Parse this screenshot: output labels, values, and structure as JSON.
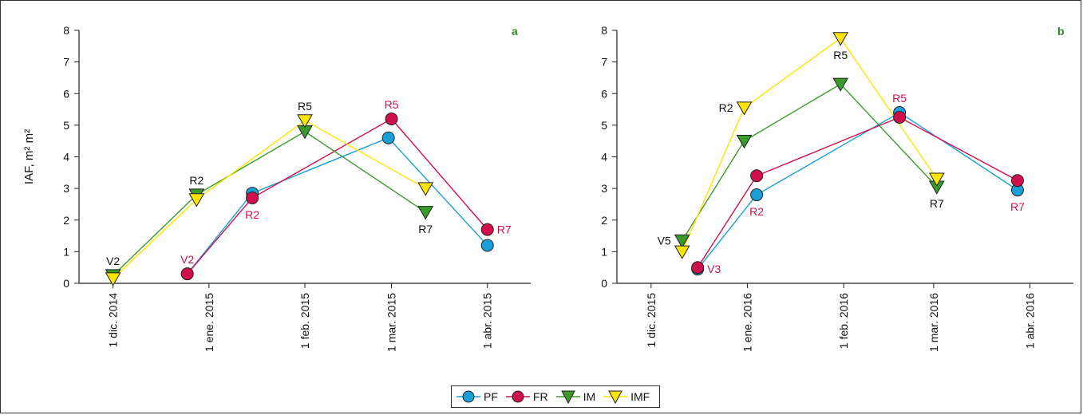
{
  "colors": {
    "PF": "#1a9fd6",
    "FR": "#d0104c",
    "IM": "#3a9a2a",
    "IMF": "#ffe400",
    "annot_black": "#111111",
    "annot_red": "#d0104c",
    "panel_letter": "#2e8b2e"
  },
  "legend": [
    {
      "key": "PF",
      "label": "PF",
      "marker": "circle"
    },
    {
      "key": "FR",
      "label": "FR",
      "marker": "circle"
    },
    {
      "key": "IM",
      "label": "IM",
      "marker": "triangle-down"
    },
    {
      "key": "IMF",
      "label": "IMF",
      "marker": "triangle-down"
    }
  ],
  "chart_data": [
    {
      "type": "line",
      "panel": "a",
      "ylabel": "IAF, m² m²",
      "ylim": [
        0,
        8
      ],
      "yticks": [
        0,
        1,
        2,
        3,
        4,
        5,
        6,
        7,
        8
      ],
      "xlim": [
        "2014-11-20",
        "2015-04-15"
      ],
      "xticks": [
        {
          "date": "2014-12-01",
          "label": "1 dic. 2014"
        },
        {
          "date": "2015-01-01",
          "label": "1 ene. 2015"
        },
        {
          "date": "2015-02-01",
          "label": "1 feb. 2015"
        },
        {
          "date": "2015-03-01",
          "label": "1 mar. 2015"
        },
        {
          "date": "2015-04-01",
          "label": "1 abr. 2015"
        }
      ],
      "series": [
        {
          "name": "PF",
          "points": [
            [
              "2014-12-25",
              0.3
            ],
            [
              "2015-01-15",
              2.85
            ],
            [
              "2015-02-28",
              4.6
            ],
            [
              "2015-04-01",
              1.2
            ]
          ]
        },
        {
          "name": "FR",
          "points": [
            [
              "2014-12-25",
              0.3
            ],
            [
              "2015-01-15",
              2.7
            ],
            [
              "2015-03-01",
              5.2
            ],
            [
              "2015-04-01",
              1.7
            ]
          ]
        },
        {
          "name": "IM",
          "points": [
            [
              "2014-12-01",
              0.25
            ],
            [
              "2014-12-28",
              2.8
            ],
            [
              "2015-02-01",
              4.8
            ],
            [
              "2015-03-12",
              2.25
            ]
          ]
        },
        {
          "name": "IMF",
          "points": [
            [
              "2014-12-01",
              0.15
            ],
            [
              "2014-12-28",
              2.65
            ],
            [
              "2015-02-01",
              5.15
            ],
            [
              "2015-03-12",
              3.0
            ]
          ]
        }
      ],
      "annotations": [
        {
          "text": "V2",
          "at": [
            "2014-12-01",
            0.25
          ],
          "color": "black",
          "pos": "above"
        },
        {
          "text": "V2",
          "at": [
            "2014-12-25",
            0.3
          ],
          "color": "red",
          "pos": "above"
        },
        {
          "text": "R2",
          "at": [
            "2014-12-28",
            2.8
          ],
          "color": "black",
          "pos": "above"
        },
        {
          "text": "R2",
          "at": [
            "2015-01-15",
            2.7
          ],
          "color": "red",
          "pos": "below"
        },
        {
          "text": "R5",
          "at": [
            "2015-02-01",
            5.15
          ],
          "color": "black",
          "pos": "above"
        },
        {
          "text": "R5",
          "at": [
            "2015-03-01",
            5.2
          ],
          "color": "red",
          "pos": "above"
        },
        {
          "text": "R7",
          "at": [
            "2015-03-12",
            2.25
          ],
          "color": "black",
          "pos": "below"
        },
        {
          "text": "R7",
          "at": [
            "2015-04-01",
            1.7
          ],
          "color": "red",
          "pos": "right"
        }
      ]
    },
    {
      "type": "line",
      "panel": "b",
      "ylabel": "",
      "ylim": [
        0,
        8
      ],
      "yticks": [
        0,
        1,
        2,
        3,
        4,
        5,
        6,
        7,
        8
      ],
      "xlim": [
        "2015-11-20",
        "2016-04-15"
      ],
      "xticks": [
        {
          "date": "2015-12-01",
          "label": "1 dic. 2015"
        },
        {
          "date": "2016-01-01",
          "label": "1 ene. 2016"
        },
        {
          "date": "2016-02-01",
          "label": "1 feb. 2016"
        },
        {
          "date": "2016-03-01",
          "label": "1 mar. 2016"
        },
        {
          "date": "2016-04-01",
          "label": "1 abr. 2016"
        }
      ],
      "series": [
        {
          "name": "PF",
          "points": [
            [
              "2015-12-16",
              0.45
            ],
            [
              "2016-01-04",
              2.8
            ],
            [
              "2016-02-19",
              5.4
            ],
            [
              "2016-03-28",
              2.95
            ]
          ]
        },
        {
          "name": "FR",
          "points": [
            [
              "2015-12-16",
              0.5
            ],
            [
              "2016-01-04",
              3.4
            ],
            [
              "2016-02-19",
              5.25
            ],
            [
              "2016-03-28",
              3.25
            ]
          ]
        },
        {
          "name": "IM",
          "points": [
            [
              "2015-12-11",
              1.35
            ],
            [
              "2015-12-31",
              4.5
            ],
            [
              "2016-01-31",
              6.3
            ],
            [
              "2016-03-02",
              3.05
            ]
          ]
        },
        {
          "name": "IMF",
          "points": [
            [
              "2015-12-11",
              1.0
            ],
            [
              "2015-12-31",
              5.55
            ],
            [
              "2016-01-31",
              7.75
            ],
            [
              "2016-03-02",
              3.3
            ]
          ]
        }
      ],
      "annotations": [
        {
          "text": "V5",
          "at": [
            "2015-12-11",
            1.35
          ],
          "color": "black",
          "pos": "left"
        },
        {
          "text": "V3",
          "at": [
            "2015-12-16",
            0.45
          ],
          "color": "red",
          "pos": "right"
        },
        {
          "text": "R2",
          "at": [
            "2015-12-31",
            5.55
          ],
          "color": "black",
          "pos": "left"
        },
        {
          "text": "R2",
          "at": [
            "2016-01-04",
            2.8
          ],
          "color": "red",
          "pos": "below"
        },
        {
          "text": "R5",
          "at": [
            "2016-01-31",
            7.75
          ],
          "color": "black",
          "pos": "below"
        },
        {
          "text": "R5",
          "at": [
            "2016-02-19",
            5.4
          ],
          "color": "red",
          "pos": "above"
        },
        {
          "text": "R7",
          "at": [
            "2016-03-02",
            3.05
          ],
          "color": "black",
          "pos": "below"
        },
        {
          "text": "R7",
          "at": [
            "2016-03-28",
            2.95
          ],
          "color": "red",
          "pos": "below"
        }
      ]
    }
  ]
}
